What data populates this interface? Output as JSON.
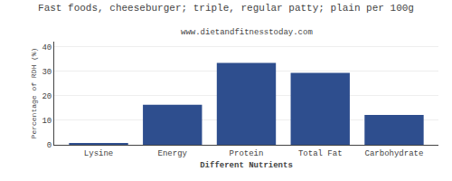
{
  "chart_data": {
    "type": "bar",
    "title": "Fast foods, cheeseburger; triple, regular patty; plain per 100g",
    "subtitle": "www.dietandfitnesstoday.com",
    "xlabel": "Different Nutrients",
    "ylabel": "Percentage of RDH (%)",
    "categories": [
      "Lysine",
      "Energy",
      "Protein",
      "Total Fat",
      "Carbohydrate"
    ],
    "values": [
      0.4,
      16.3,
      33.3,
      29.3,
      12.2
    ],
    "color": "#2e4e8e",
    "ylim": [
      0,
      42
    ],
    "yticks": [
      0,
      10,
      20,
      30,
      40
    ],
    "grid": true
  }
}
